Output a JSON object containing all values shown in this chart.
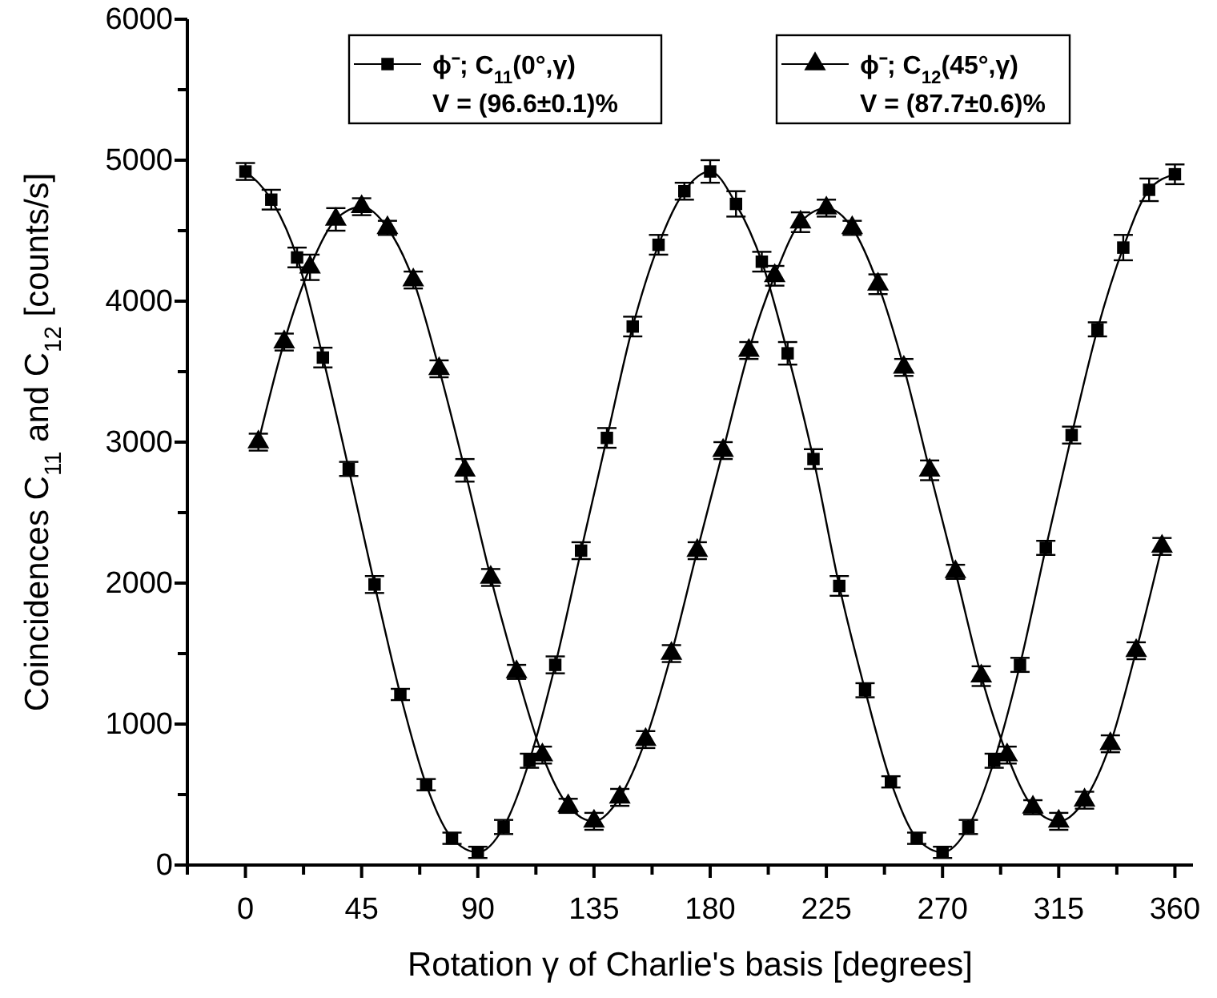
{
  "chart_data": {
    "type": "line",
    "xlabel": "Rotation γ of Charlie's basis [degrees]",
    "ylabel": "Coincidences C$_{11}$ and C$_{12}$  [counts/s]",
    "xlim": [
      -22.5,
      367
    ],
    "xticks": [
      {
        "value": -22.5,
        "label": null
      },
      0,
      {
        "value": 22.5,
        "label": null
      },
      45,
      {
        "value": 67.5,
        "label": null
      },
      90,
      {
        "value": 112.5,
        "label": null
      },
      135,
      {
        "value": 157.5,
        "label": null
      },
      180,
      {
        "value": 202.5,
        "label": null
      },
      225,
      {
        "value": 247.5,
        "label": null
      },
      270,
      {
        "value": 292.5,
        "label": null
      },
      315,
      {
        "value": 337.5,
        "label": null
      },
      360
    ],
    "ylim": [
      0,
      6000
    ],
    "yticks": [
      0,
      {
        "value": 500,
        "label": null
      },
      1000,
      {
        "value": 1500,
        "label": null
      },
      2000,
      {
        "value": 2500,
        "label": null
      },
      3000,
      {
        "value": 3500,
        "label": null
      },
      4000,
      {
        "value": 4500,
        "label": null
      },
      5000,
      {
        "value": 5500,
        "label": null
      },
      6000
    ],
    "grid": false,
    "legend": "top",
    "annotations": [
      "V = (96.6±0.1)%",
      "V = (87.7±0.6)%"
    ],
    "series": [
      {
        "name": "ϕ⁻; C$_{11}$(0°,γ)",
        "color": "#000000",
        "marker": "square",
        "x": [
          0,
          10,
          20,
          30,
          40,
          50,
          60,
          70,
          80,
          90,
          100,
          110,
          120,
          130,
          140,
          150,
          160,
          170,
          180,
          190,
          200,
          210,
          220,
          230,
          240,
          250,
          260,
          270,
          280,
          290,
          300,
          310,
          320,
          330,
          340,
          350,
          360
        ],
        "values": [
          4920,
          4720,
          4310,
          3600,
          2810,
          1990,
          1210,
          570,
          190,
          90,
          270,
          740,
          1420,
          2230,
          3030,
          3820,
          4400,
          4780,
          4920,
          4690,
          4280,
          3630,
          2880,
          1980,
          1240,
          590,
          190,
          90,
          270,
          740,
          1420,
          2250,
          3050,
          3800,
          4380,
          4790,
          4900
        ],
        "errors": [
          60,
          70,
          70,
          70,
          50,
          60,
          40,
          40,
          40,
          40,
          50,
          50,
          60,
          60,
          70,
          70,
          70,
          60,
          80,
          90,
          70,
          80,
          70,
          70,
          50,
          40,
          40,
          40,
          50,
          50,
          50,
          50,
          60,
          50,
          90,
          80,
          70
        ]
      },
      {
        "name": "ϕ⁻; C$_{12}$(45°,γ)",
        "color": "#000000",
        "marker": "triangle",
        "x": [
          5,
          15,
          25,
          35,
          45,
          55,
          65,
          75,
          85,
          95,
          105,
          115,
          125,
          135,
          145,
          155,
          165,
          175,
          185,
          195,
          205,
          215,
          225,
          235,
          245,
          255,
          265,
          275,
          285,
          295,
          305,
          315,
          325,
          335,
          345,
          355
        ],
        "values": [
          3000,
          3710,
          4240,
          4580,
          4670,
          4520,
          4150,
          3520,
          2800,
          2040,
          1370,
          780,
          420,
          310,
          480,
          890,
          1500,
          2230,
          2940,
          3650,
          4180,
          4560,
          4660,
          4520,
          4120,
          3530,
          2800,
          2080,
          1340,
          780,
          410,
          310,
          460,
          860,
          1520,
          2260
        ],
        "errors": [
          60,
          60,
          90,
          80,
          60,
          50,
          60,
          60,
          80,
          60,
          50,
          60,
          50,
          60,
          60,
          60,
          60,
          60,
          60,
          60,
          70,
          70,
          60,
          50,
          70,
          60,
          70,
          50,
          70,
          60,
          50,
          60,
          60,
          60,
          60,
          60
        ]
      }
    ]
  }
}
